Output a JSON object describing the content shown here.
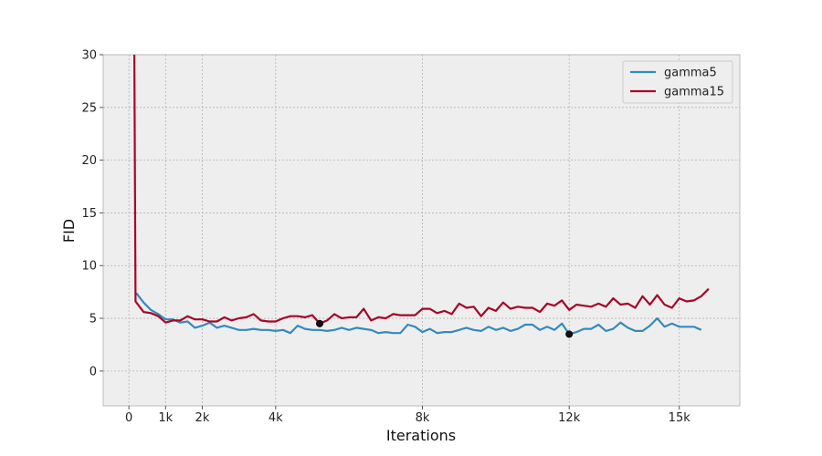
{
  "chart_data": {
    "type": "line",
    "xlabel": "Iterations",
    "ylabel": "FID",
    "xlim": [
      -700,
      16650
    ],
    "ylim": [
      -3.3,
      30
    ],
    "x_ticks": [
      {
        "value": 0,
        "label": "0"
      },
      {
        "value": 1000,
        "label": "1k"
      },
      {
        "value": 2000,
        "label": "2k"
      },
      {
        "value": 4000,
        "label": "4k"
      },
      {
        "value": 8000,
        "label": "8k"
      },
      {
        "value": 12000,
        "label": "12k"
      },
      {
        "value": 15000,
        "label": "15k"
      }
    ],
    "y_ticks": [
      {
        "value": 0,
        "label": "0"
      },
      {
        "value": 5,
        "label": "5"
      },
      {
        "value": 10,
        "label": "10"
      },
      {
        "value": 15,
        "label": "15"
      },
      {
        "value": 20,
        "label": "20"
      },
      {
        "value": 25,
        "label": "25"
      },
      {
        "value": 30,
        "label": "30"
      }
    ],
    "grid": true,
    "legend_position": "top-right",
    "series": [
      {
        "name": "gamma5",
        "color": "#348ABD",
        "x": [
          200,
          400,
          600,
          800,
          1000,
          1200,
          1400,
          1600,
          1800,
          2000,
          2200,
          2400,
          2600,
          2800,
          3000,
          3200,
          3400,
          3600,
          3800,
          4000,
          4200,
          4400,
          4600,
          4800,
          5000,
          5200,
          5400,
          5600,
          5800,
          6000,
          6200,
          6400,
          6600,
          6800,
          7000,
          7200,
          7400,
          7600,
          7800,
          8000,
          8200,
          8400,
          8600,
          8800,
          9000,
          9200,
          9400,
          9600,
          9800,
          10000,
          10200,
          10400,
          10600,
          10800,
          11000,
          11200,
          11400,
          11600,
          11800,
          12000,
          12200,
          12400,
          12600,
          12800,
          13000,
          13200,
          13400,
          13600,
          13800,
          14000,
          14200,
          14400,
          14600,
          14800,
          15000,
          15200,
          15400,
          15600
        ],
        "y": [
          7.4,
          6.5,
          5.8,
          5.4,
          4.9,
          4.9,
          4.6,
          4.7,
          4.1,
          4.3,
          4.6,
          4.1,
          4.3,
          4.1,
          3.9,
          3.9,
          4.0,
          3.9,
          3.9,
          3.8,
          3.9,
          3.6,
          4.3,
          4.0,
          3.9,
          3.9,
          3.8,
          3.9,
          4.1,
          3.9,
          4.1,
          4.0,
          3.9,
          3.6,
          3.7,
          3.6,
          3.6,
          4.4,
          4.2,
          3.7,
          4.0,
          3.6,
          3.7,
          3.7,
          3.9,
          4.1,
          3.9,
          3.8,
          4.2,
          3.9,
          4.1,
          3.8,
          4.0,
          4.4,
          4.4,
          3.9,
          4.2,
          3.9,
          4.5,
          3.5,
          3.7,
          4.0,
          4.0,
          4.4,
          3.8,
          4.0,
          4.6,
          4.1,
          3.8,
          3.8,
          4.3,
          5.0,
          4.2,
          4.5,
          4.2,
          4.2,
          4.2,
          3.9
        ]
      },
      {
        "name": "gamma15",
        "color": "#A60628",
        "x": [
          150,
          180,
          400,
          600,
          800,
          1000,
          1200,
          1400,
          1600,
          1800,
          2000,
          2200,
          2400,
          2600,
          2800,
          3000,
          3200,
          3400,
          3600,
          3800,
          4000,
          4200,
          4400,
          4600,
          4800,
          5000,
          5200,
          5400,
          5600,
          5800,
          6000,
          6200,
          6400,
          6600,
          6800,
          7000,
          7200,
          7400,
          7600,
          7800,
          8000,
          8200,
          8400,
          8600,
          8800,
          9000,
          9200,
          9400,
          9600,
          9800,
          10000,
          10200,
          10400,
          10600,
          10800,
          11000,
          11200,
          11400,
          11600,
          11800,
          12000,
          12200,
          12400,
          12600,
          12800,
          13000,
          13200,
          13400,
          13600,
          13800,
          14000,
          14200,
          14400,
          14600,
          14800,
          15000,
          15200,
          15400,
          15600,
          15800
        ],
        "y": [
          30,
          6.6,
          5.6,
          5.5,
          5.2,
          4.6,
          4.8,
          4.8,
          5.2,
          4.9,
          4.9,
          4.7,
          4.7,
          5.1,
          4.8,
          5.0,
          5.1,
          5.4,
          4.8,
          4.7,
          4.7,
          5.0,
          5.2,
          5.2,
          5.1,
          5.3,
          4.5,
          4.8,
          5.4,
          5.0,
          5.1,
          5.1,
          5.9,
          4.8,
          5.1,
          5.0,
          5.4,
          5.3,
          5.3,
          5.3,
          5.9,
          5.9,
          5.5,
          5.7,
          5.4,
          6.4,
          6.0,
          6.1,
          5.2,
          6.0,
          5.7,
          6.5,
          5.9,
          6.1,
          6.0,
          6.0,
          5.6,
          6.4,
          6.2,
          6.7,
          5.8,
          6.3,
          6.2,
          6.1,
          6.4,
          6.1,
          6.9,
          6.3,
          6.4,
          6.0,
          7.1,
          6.3,
          7.2,
          6.3,
          6.0,
          6.9,
          6.6,
          6.7,
          7.1,
          7.8
        ]
      }
    ],
    "markers": [
      {
        "series": "gamma15",
        "x": 5200,
        "y": 4.5
      },
      {
        "series": "gamma5",
        "x": 12000,
        "y": 3.5
      }
    ]
  }
}
